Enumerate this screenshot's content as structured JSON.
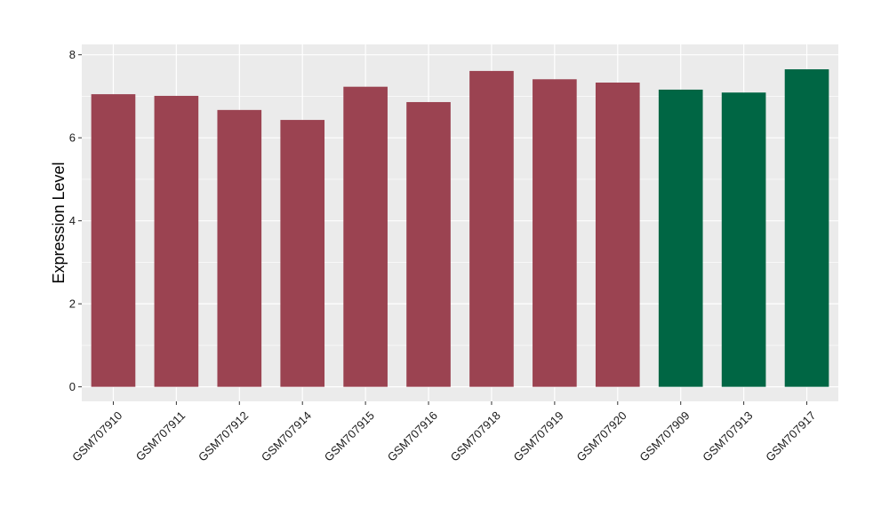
{
  "chart_data": {
    "type": "bar",
    "title": "",
    "xlabel": "",
    "ylabel": "Expression Level",
    "ylim": [
      -0.35,
      8.25
    ],
    "yticks": [
      0,
      2,
      4,
      6,
      8
    ],
    "grid": true,
    "background_color": "#EBEBEB",
    "grid_color": "#FFFFFF",
    "categories": [
      "GSM707910",
      "GSM707911",
      "GSM707912",
      "GSM707914",
      "GSM707915",
      "GSM707916",
      "GSM707918",
      "GSM707919",
      "GSM707920",
      "GSM707909",
      "GSM707913",
      "GSM707917"
    ],
    "values": [
      7.05,
      7.01,
      6.67,
      6.43,
      7.23,
      6.86,
      7.61,
      7.41,
      7.33,
      7.16,
      7.09,
      7.65
    ],
    "bar_colors": [
      "#9B4351",
      "#9B4351",
      "#9B4351",
      "#9B4351",
      "#9B4351",
      "#9B4351",
      "#9B4351",
      "#9B4351",
      "#9B4351",
      "#006644",
      "#006644",
      "#006644"
    ]
  }
}
